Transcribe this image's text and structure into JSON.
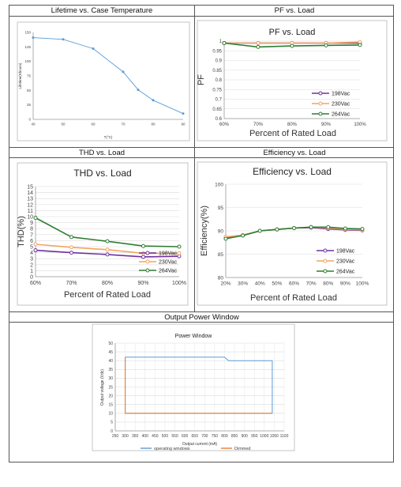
{
  "sections": {
    "lifetime": "Lifetime vs. Case Temperature",
    "pf": "PF vs. Load",
    "thd": "THD vs. Load",
    "efficiency": "Efficiency vs. Load",
    "power_window": "Output Power Window"
  },
  "chart_data": [
    {
      "id": "lifetime",
      "type": "line",
      "title": "",
      "xlabel": "T(°C)",
      "ylabel": "Lifetime(Khours)",
      "xlim": [
        40,
        90
      ],
      "ylim": [
        0,
        150
      ],
      "x_ticks": [
        "40",
        "50",
        "60",
        "70",
        "80",
        "90"
      ],
      "y_ticks": [
        "0",
        "25",
        "50",
        "75",
        "100",
        "125",
        "150"
      ],
      "grid": false,
      "color": "#5b9bd5",
      "series": [
        {
          "x": [
            40,
            50,
            60,
            70,
            75,
            80,
            90
          ],
          "values": [
            141,
            138,
            122,
            82,
            51,
            33,
            10
          ]
        }
      ]
    },
    {
      "id": "pf",
      "type": "line",
      "title": "PF vs. Load",
      "xlabel": "Percent of Rated Load",
      "ylabel": "PF",
      "categories": [
        "60%",
        "70%",
        "80%",
        "90%",
        "100%"
      ],
      "ylim": [
        0.6,
        1.0
      ],
      "y_ticks": [
        "0.6",
        "0.65",
        "0.7",
        "0.75",
        "0.8",
        "0.85",
        "0.9",
        "0.95",
        "1"
      ],
      "grid": true,
      "legend": "bottom-right",
      "series": [
        {
          "name": "198Vac",
          "color": "#7030a0",
          "values": [
            0.99,
            0.99,
            0.99,
            0.99,
            0.99
          ]
        },
        {
          "name": "230Vac",
          "color": "#f4a460",
          "values": [
            0.99,
            0.99,
            0.99,
            0.99,
            0.995
          ]
        },
        {
          "name": "264Vac",
          "color": "#2e7d32",
          "values": [
            0.99,
            0.97,
            0.975,
            0.978,
            0.98
          ]
        }
      ]
    },
    {
      "id": "thd",
      "type": "line",
      "title": "THD vs. Load",
      "xlabel": "Percent of Rated Load",
      "ylabel": "THD(%)",
      "categories": [
        "60%",
        "70%",
        "80%",
        "90%",
        "100%"
      ],
      "ylim": [
        0,
        15
      ],
      "y_ticks": [
        "0",
        "1",
        "2",
        "3",
        "4",
        "5",
        "6",
        "7",
        "8",
        "9",
        "10",
        "11",
        "12",
        "13",
        "14",
        "15"
      ],
      "grid": true,
      "legend": "bottom-right",
      "series": [
        {
          "name": "198Vac",
          "color": "#7030a0",
          "values": [
            4.4,
            4.0,
            3.7,
            3.3,
            3.4
          ]
        },
        {
          "name": "230Vac",
          "color": "#f4a460",
          "values": [
            5.4,
            4.9,
            4.5,
            3.9,
            3.9
          ]
        },
        {
          "name": "264Vac",
          "color": "#2e7d32",
          "values": [
            9.8,
            6.6,
            5.9,
            5.1,
            5.0
          ]
        }
      ]
    },
    {
      "id": "efficiency",
      "type": "line",
      "title": "Efficiency vs. Load",
      "xlabel": "Percent of Rated Load",
      "ylabel": "Efficiency(%)",
      "categories": [
        "20%",
        "30%",
        "40%",
        "50%",
        "60%",
        "70%",
        "80%",
        "90%",
        "100%"
      ],
      "ylim": [
        80,
        100
      ],
      "y_ticks": [
        "80",
        "85",
        "90",
        "95",
        "100"
      ],
      "grid": true,
      "legend": "bottom-right",
      "series": [
        {
          "name": "198Vac",
          "color": "#7030a0",
          "values": [
            88.5,
            89,
            90,
            90.3,
            90.6,
            90.7,
            90.4,
            90.2,
            90.1
          ]
        },
        {
          "name": "230Vac",
          "color": "#f4a460",
          "values": [
            88.7,
            89.1,
            90,
            90.3,
            90.6,
            90.8,
            90.6,
            90.3,
            90.2
          ]
        },
        {
          "name": "264Vac",
          "color": "#2e7d32",
          "values": [
            88.3,
            89,
            90,
            90.3,
            90.6,
            90.8,
            90.8,
            90.5,
            90.4
          ]
        }
      ]
    },
    {
      "id": "power_window",
      "type": "line",
      "title": "Power Window",
      "xlabel": "Output current (mA)",
      "ylabel": "Output voltage (Vdc)",
      "xlim": [
        250,
        1100
      ],
      "ylim": [
        0,
        50
      ],
      "x_ticks": [
        "250",
        "300",
        "350",
        "400",
        "450",
        "500",
        "550",
        "600",
        "650",
        "700",
        "750",
        "800",
        "850",
        "900",
        "950",
        "1000",
        "1050",
        "1100"
      ],
      "y_ticks": [
        "0",
        "5",
        "10",
        "15",
        "20",
        "25",
        "30",
        "35",
        "40",
        "45",
        "50"
      ],
      "grid": true,
      "legend": "bottom",
      "series": [
        {
          "name": "operating windows",
          "color": "#5b9bd5",
          "x": [
            300,
            800,
            820,
            1040,
            1040,
            300,
            300
          ],
          "values": [
            42,
            42,
            40,
            40,
            10,
            10,
            42
          ]
        },
        {
          "name": "Dimmed",
          "color": "#ed7d31",
          "x": [
            300,
            300,
            1040
          ],
          "values": [
            42,
            10,
            10
          ]
        }
      ]
    }
  ]
}
